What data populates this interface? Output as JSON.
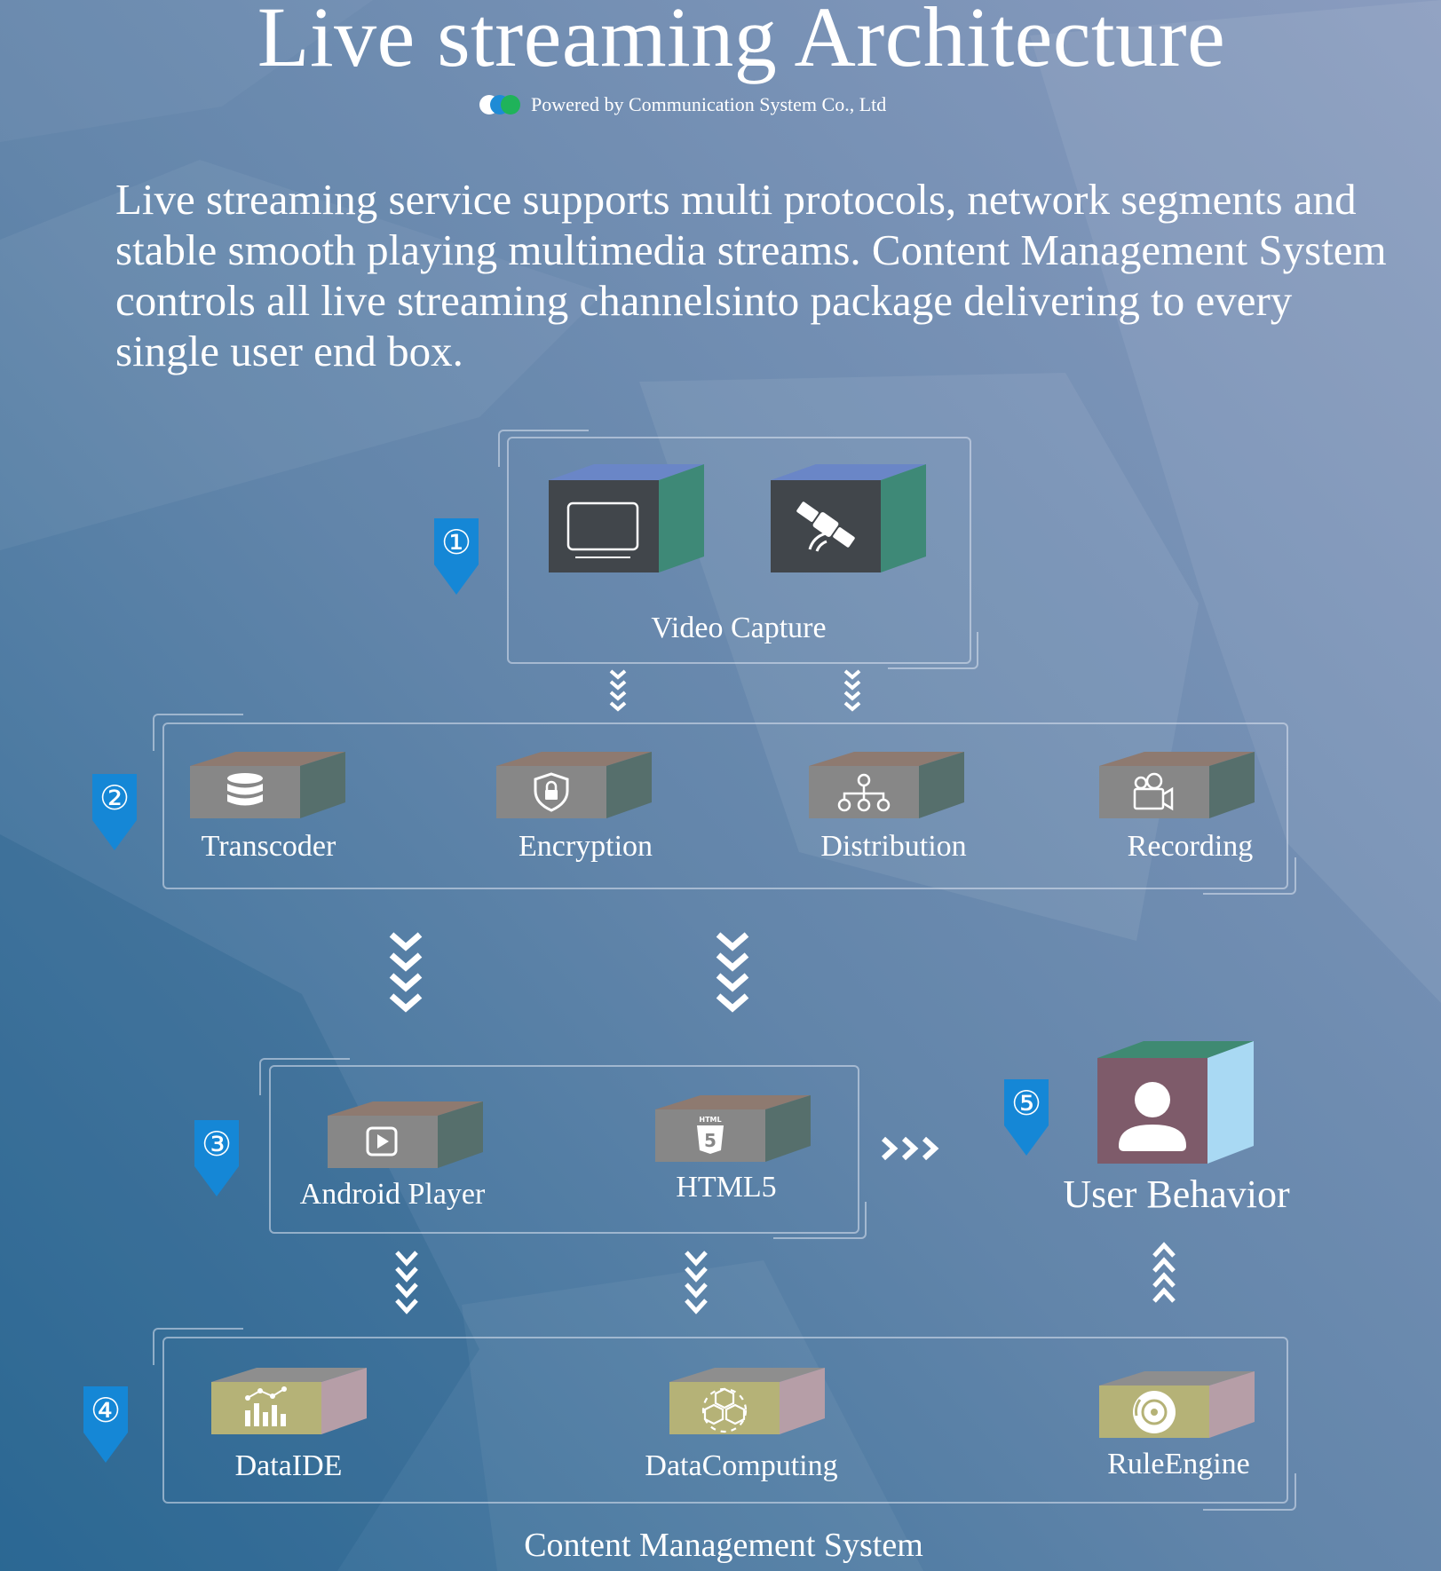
{
  "header": {
    "title": "Live streaming Architecture",
    "powered_by": "Powered by Communication System Co., Ltd"
  },
  "description": "Live streaming service supports multi protocols, network segments and stable smooth playing multimedia streams. Content Management System controls all live streaming channelsinto package delivering to every single user end box.",
  "steps": [
    {
      "number": "①"
    },
    {
      "number": "②"
    },
    {
      "number": "③"
    },
    {
      "number": "④"
    },
    {
      "number": "⑤"
    }
  ],
  "stage1": {
    "label": "Video Capture",
    "icons": [
      "monitor-icon",
      "satellite-icon"
    ]
  },
  "stage2": {
    "items": [
      {
        "label": "Transcoder",
        "icon": "database-icon"
      },
      {
        "label": "Encryption",
        "icon": "shield-lock-icon"
      },
      {
        "label": "Distribution",
        "icon": "network-tree-icon"
      },
      {
        "label": "Recording",
        "icon": "video-camera-icon"
      }
    ]
  },
  "stage3": {
    "items": [
      {
        "label": "Android Player",
        "icon": "play-icon"
      },
      {
        "label": "HTML5",
        "icon": "html5-icon"
      }
    ]
  },
  "stage4": {
    "items": [
      {
        "label": "DataIDE",
        "icon": "bar-chart-icon"
      },
      {
        "label": "DataComputing",
        "icon": "cubes-icon"
      },
      {
        "label": "RuleEngine",
        "icon": "disc-icon"
      }
    ],
    "caption": "Content Management System"
  },
  "stage5": {
    "label": "User Behavior",
    "icon": "user-icon"
  },
  "colors": {
    "marker_blue": "#1587d6",
    "box_grey_front": "#878787",
    "box_dark_front": "#41464b",
    "box_olive_front": "#b5b277",
    "box_user_front": "#7e5b6a",
    "box_user_side": "#a9d9f3"
  }
}
